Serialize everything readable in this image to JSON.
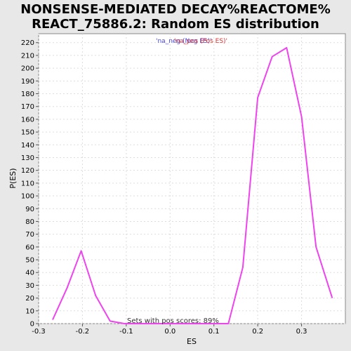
{
  "chart_data": {
    "type": "line",
    "title_line1": "NONSENSE-MEDIATED DECAY%REACTOME%",
    "title_line2": "REACT_75886.2: Random ES distribution",
    "xlabel": "ES",
    "ylabel": "P(ES)",
    "xlim": [
      -0.3,
      0.4
    ],
    "ylim": [
      0,
      227
    ],
    "x_ticks": [
      -0.3,
      -0.2,
      -0.1,
      0.0,
      0.1,
      0.2,
      0.3
    ],
    "x_tick_labels": [
      "-0.3",
      "-0.2",
      "-0.1",
      "0.0",
      "0.1",
      "0.2",
      "0.3"
    ],
    "y_ticks": [
      0,
      10,
      20,
      30,
      40,
      50,
      60,
      70,
      80,
      90,
      100,
      110,
      120,
      130,
      140,
      150,
      160,
      170,
      180,
      190,
      200,
      210,
      220
    ],
    "y_tick_labels": [
      "0",
      "10",
      "20",
      "30",
      "40",
      "50",
      "60",
      "70",
      "80",
      "90",
      "100",
      "110",
      "120",
      "130",
      "140",
      "150",
      "160",
      "170",
      "180",
      "190",
      "200",
      "210",
      "220"
    ],
    "grid": true,
    "legend": {
      "placement": "top-center",
      "entries": [
        {
          "label": "'na_neg (Neg ES)'",
          "color": "#4444dd"
        },
        {
          "label": "'na_pos (Pos ES)'",
          "color": "#dd3333"
        }
      ]
    },
    "series": [
      {
        "color": "#ee44ee",
        "x": [
          -0.268,
          -0.235,
          -0.203,
          -0.17,
          -0.137,
          -0.104,
          -0.071,
          -0.038,
          -0.005,
          0.028,
          0.061,
          0.094,
          0.133,
          0.166,
          0.2,
          0.233,
          0.266,
          0.3,
          0.333,
          0.37
        ],
        "y": [
          3,
          28,
          57,
          22,
          2,
          0,
          0,
          0,
          0,
          0,
          0,
          0,
          0,
          44,
          177,
          209,
          216,
          162,
          60,
          20
        ]
      }
    ],
    "annotation": "Sets with pos scores: 89%"
  }
}
